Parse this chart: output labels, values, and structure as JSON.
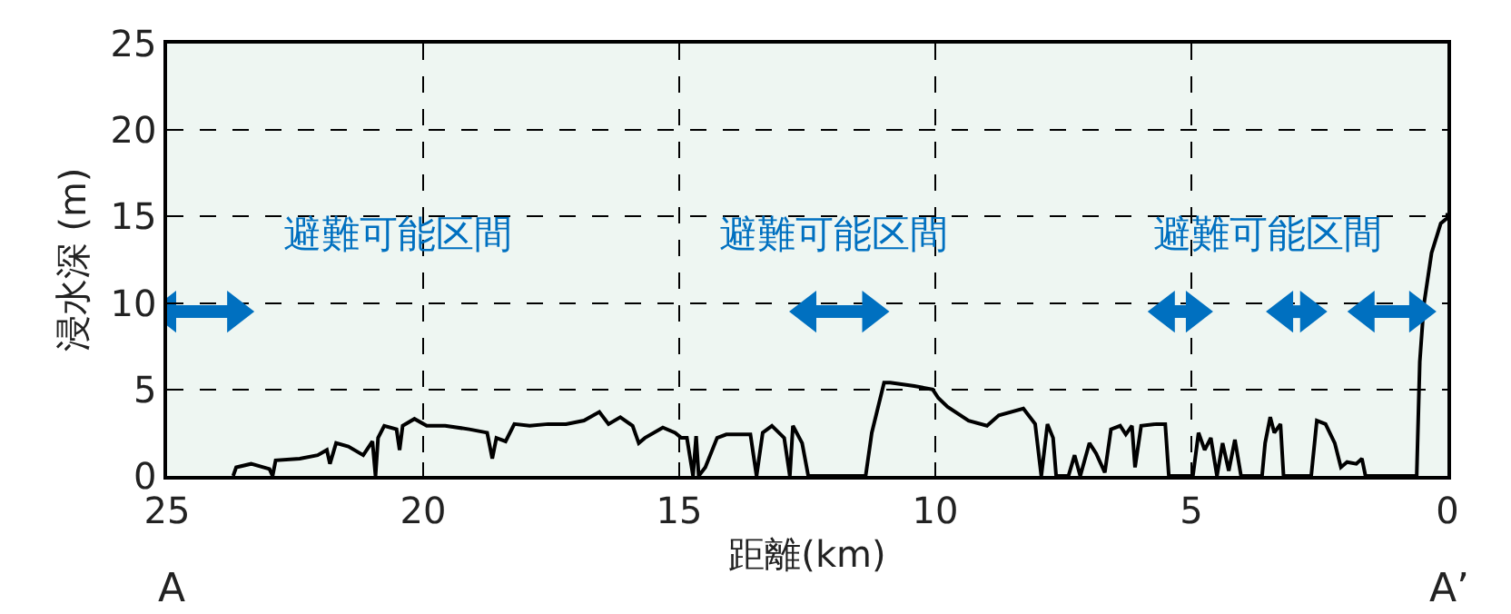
{
  "chart_data": {
    "type": "line",
    "xlabel": "距離(km)",
    "ylabel": "浸水深 (m)",
    "xlim": [
      25,
      0
    ],
    "xticks": [
      25,
      20,
      15,
      10,
      5,
      0
    ],
    "ylim": [
      0,
      25
    ],
    "yticks": [
      0,
      5,
      10,
      15,
      20,
      25
    ],
    "grid": true,
    "series": [
      {
        "color": "#000000",
        "x": [
          23.71,
          23.65,
          23.36,
          23.0,
          22.94,
          22.88,
          22.41,
          22.06,
          21.88,
          21.82,
          21.7,
          21.46,
          21.17,
          20.99,
          20.93,
          20.88,
          20.76,
          20.52,
          20.46,
          20.4,
          20.17,
          19.93,
          19.57,
          19.1,
          18.75,
          18.65,
          18.57,
          18.39,
          18.22,
          17.92,
          17.56,
          17.21,
          16.86,
          16.56,
          16.38,
          16.15,
          15.91,
          15.79,
          15.67,
          15.32,
          15.08,
          14.96,
          14.85,
          14.73,
          14.67,
          14.62,
          14.49,
          14.26,
          14.08,
          13.61,
          13.49,
          13.37,
          13.19,
          12.95,
          12.84,
          12.78,
          12.6,
          12.48,
          11.36,
          11.24,
          11.0,
          10.88,
          10.41,
          10.05,
          9.94,
          9.76,
          9.35,
          8.99,
          8.76,
          8.28,
          8.05,
          7.93,
          7.81,
          7.7,
          7.64,
          7.4,
          7.28,
          7.17,
          6.99,
          6.86,
          6.69,
          6.57,
          6.39,
          6.28,
          6.16,
          6.1,
          5.98,
          5.68,
          5.51,
          5.44,
          4.97,
          4.86,
          4.74,
          4.62,
          4.5,
          4.39,
          4.27,
          4.15,
          4.03,
          3.62,
          3.56,
          3.46,
          3.38,
          3.26,
          3.2,
          2.66,
          2.55,
          2.38,
          2.2,
          2.08,
          1.96,
          1.78,
          1.67,
          1.6,
          0.6,
          0.54,
          0.46,
          0.31,
          0.13,
          0.01,
          0
        ],
        "values": [
          0,
          0.5,
          0.7,
          0.4,
          0,
          0.9,
          1.0,
          1.2,
          1.5,
          0.7,
          1.9,
          1.7,
          1.2,
          2.0,
          0,
          2.2,
          2.9,
          2.7,
          1.5,
          2.9,
          3.3,
          2.9,
          2.9,
          2.7,
          2.5,
          1.0,
          2.2,
          2.0,
          3.0,
          2.9,
          3.0,
          3.0,
          3.2,
          3.7,
          3.0,
          3.4,
          2.9,
          1.9,
          2.2,
          2.8,
          2.5,
          2.2,
          2.2,
          0,
          2.3,
          0,
          0.5,
          2.2,
          2.4,
          2.4,
          0,
          2.5,
          2.9,
          2.2,
          0,
          2.9,
          1.9,
          0,
          0,
          2.5,
          5.4,
          5.4,
          5.2,
          5.0,
          4.5,
          4.0,
          3.2,
          2.9,
          3.5,
          3.9,
          3.0,
          0,
          3.0,
          2.2,
          0,
          0,
          1.2,
          0,
          1.9,
          1.3,
          0.2,
          2.7,
          2.9,
          2.4,
          2.9,
          0.5,
          2.9,
          3.0,
          3.0,
          0,
          0,
          2.5,
          1.5,
          2.2,
          0,
          1.9,
          0.3,
          2.1,
          0,
          0,
          1.9,
          3.4,
          2.5,
          3.0,
          0,
          0,
          3.2,
          3.0,
          1.9,
          0.5,
          0.8,
          0.7,
          1.0,
          0,
          0,
          6.6,
          9.9,
          12.9,
          14.6,
          14.9,
          15.2
        ]
      },
      {
        "color": "#0070c0",
        "marker": "triangle",
        "x": [
          25,
          23.65,
          null,
          12.5,
          11.25,
          null,
          5.5,
          4.93,
          null,
          3.19,
          2.7,
          null,
          1.6,
          0.57
        ],
        "values": [
          9.5,
          9.5,
          null,
          9.5,
          9.5,
          null,
          9.5,
          9.5,
          null,
          9.5,
          9.5,
          null,
          9.5,
          9.5
        ]
      }
    ],
    "annotations": [
      "避難可能区間",
      "避難可能区間",
      "避難可能区間",
      "A",
      "A’"
    ]
  }
}
